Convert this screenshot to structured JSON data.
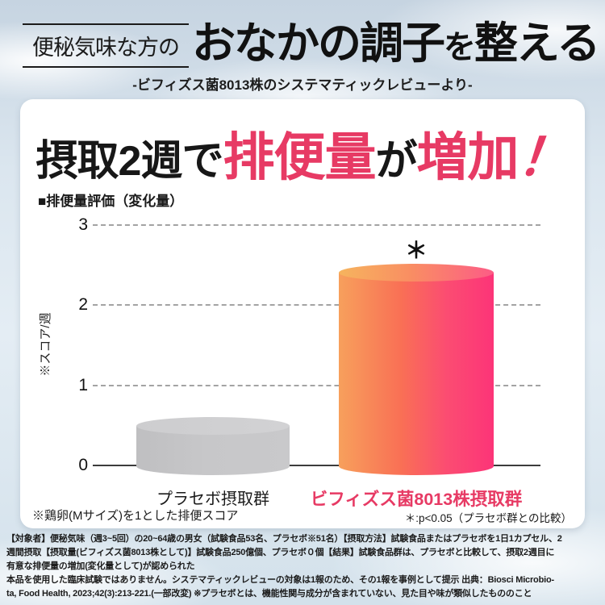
{
  "header": {
    "tagline": "便秘気味な方の",
    "title_main": "おなかの調子",
    "title_particle": "を",
    "title_tail": "整える",
    "subtitle": "-ビフィズス菌8013株のシステマティックレビューより-"
  },
  "card": {
    "headline": {
      "seg1": "摂取2週で",
      "seg2": "排便量",
      "seg3": "が",
      "seg4": "増加",
      "seg5": "！"
    },
    "accent_color": "#e73a64",
    "footnote_left": "※鶏卵(Mサイズ)を1とした排便スコア",
    "footnote_right": "＊:p<0.05（プラセボ群との比較）"
  },
  "chart_data": {
    "type": "bar",
    "title": "■排便量評価（変化量）",
    "ylabel": "※スコア/週",
    "ylim": [
      0,
      3
    ],
    "yticks": [
      3,
      2,
      1,
      0
    ],
    "categories": [
      "プラセボ摂取群",
      "ビフィズス菌8013株摂取群"
    ],
    "values": [
      0.5,
      2.4
    ],
    "significance_marker": "＊",
    "grid": "horizontal dashed lines at 1, 2, 3",
    "legend_position": "none",
    "bar_styles": [
      {
        "shape": "cylinder",
        "label_color": "#1a1a1a",
        "gradient": [
          "#bfbfc1",
          "#c9c9cb"
        ]
      },
      {
        "shape": "cylinder",
        "label_color": "#e73a64",
        "gradient": [
          "#f7a05c",
          "#fc3478"
        ]
      }
    ]
  },
  "fine_print": {
    "lines": [
      "【対象者】便秘気味（週3~5回）の20~64歳の男女（試験食品53名、プラセボ※51名）【摂取方法】試験食品またはプラセボを1日1カプセル、2",
      "週間摂取【摂取量(ビフィズス菌8013株として)】試験食品250億個、プラセボ０個【結果】試験食品群は、プラセボと比較して、摂取2週目に",
      "有意な排便量の増加(変化量として)が認められた",
      "本品を使用した臨床試験ではありません。システマティックレビューの対象は1報のため、その1報を事例として提示 出典：Biosci Microbio-",
      "ta, Food Health, 2023;42(3):213-221.(一部改変) ※プラセボとは、機能性関与成分が含まれていない、見た目や味が類似したもののこと"
    ]
  }
}
